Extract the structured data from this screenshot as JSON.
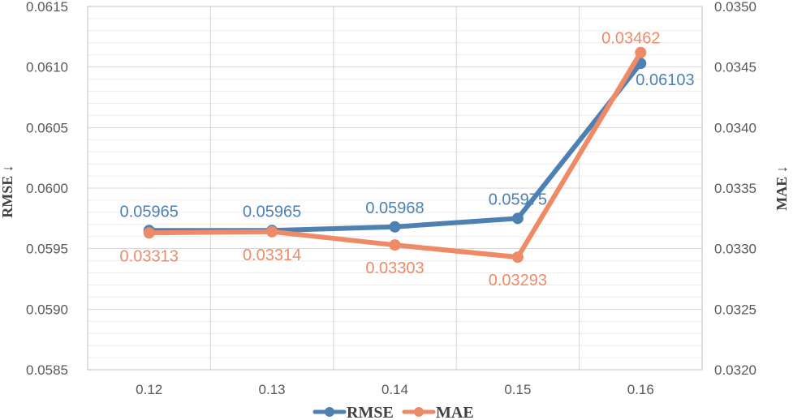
{
  "chart_data": {
    "type": "line",
    "x": [
      "0.12",
      "0.13",
      "0.14",
      "0.15",
      "0.16"
    ],
    "series": [
      {
        "name": "RMSE",
        "axis": "left",
        "color": "#4e80b4",
        "values": [
          0.05965,
          0.05965,
          0.05968,
          0.05975,
          0.06103
        ],
        "labels": [
          "0.05965",
          "0.05965",
          "0.05968",
          "0.05975",
          "0.06103"
        ]
      },
      {
        "name": "MAE",
        "axis": "right",
        "color": "#ef8a67",
        "values": [
          0.03313,
          0.03314,
          0.03303,
          0.03293,
          0.03462
        ],
        "labels": [
          "0.03313",
          "0.03314",
          "0.03303",
          "0.03293",
          "0.03462"
        ]
      }
    ],
    "ylabel_left": "RMSE ↓",
    "ylabel_right": "MAE ↓",
    "ylim_left": [
      0.0585,
      0.0615
    ],
    "ylim_right": [
      0.032,
      0.035
    ],
    "yticks_left": [
      "0.0585",
      "0.0590",
      "0.0595",
      "0.0600",
      "0.0605",
      "0.0610",
      "0.0615"
    ],
    "yticks_right": [
      "0.0320",
      "0.0325",
      "0.0330",
      "0.0335",
      "0.0340",
      "0.0345",
      "0.0350"
    ],
    "grid": true,
    "legend_position": "bottom"
  }
}
